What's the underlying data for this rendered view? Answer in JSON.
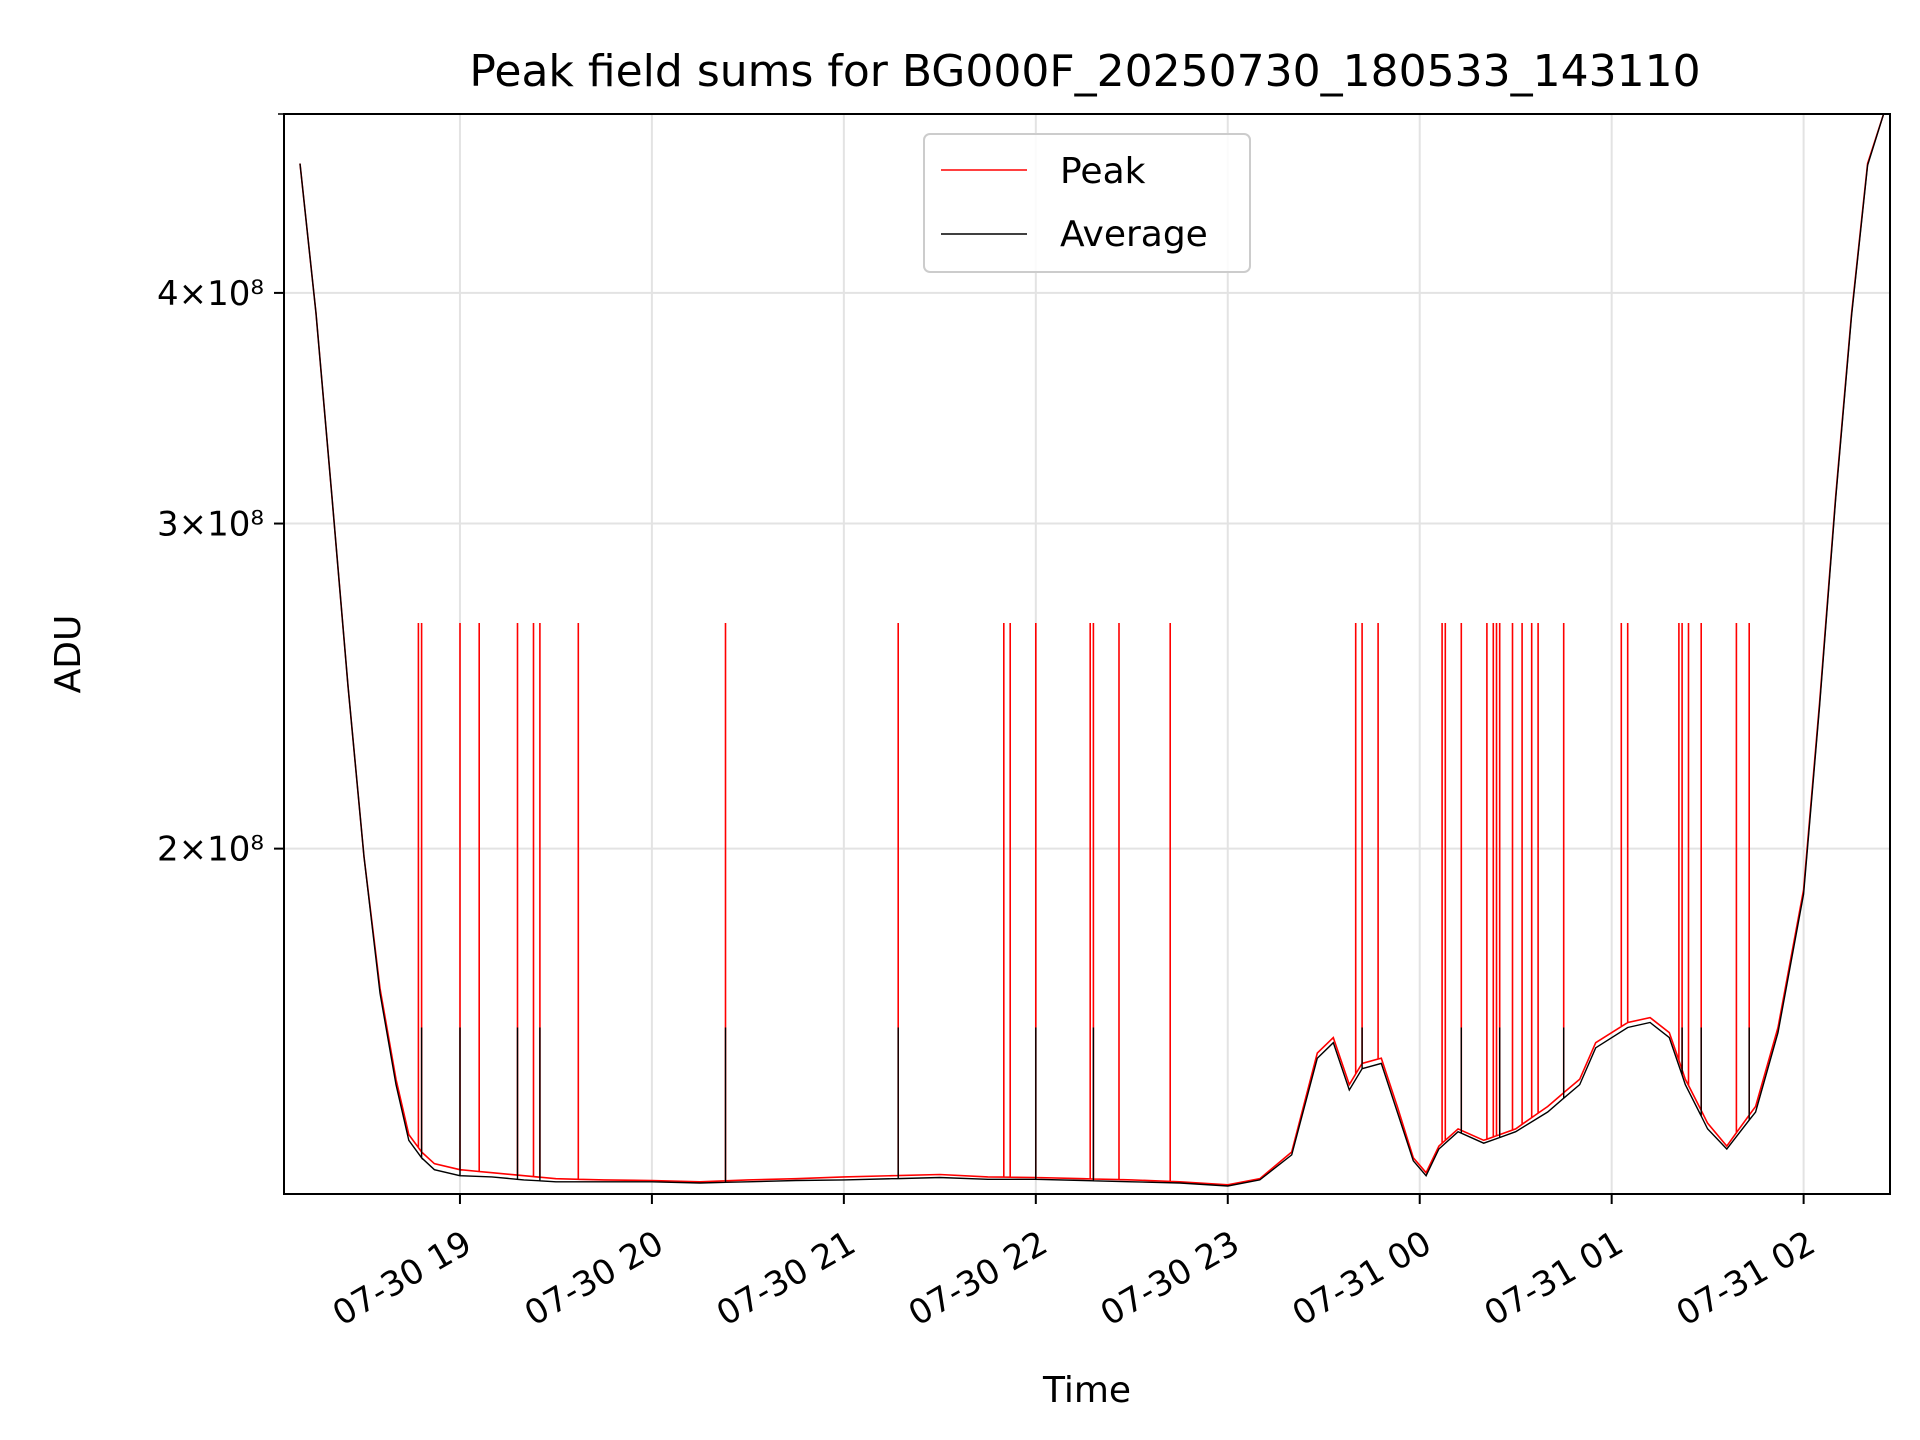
{
  "chart_data": {
    "type": "line",
    "title": "Peak field sums for BG000F_20250730_180533_143110",
    "xlabel": "Time",
    "ylabel": "ADU",
    "yscale": "log",
    "grid": true,
    "legend_position": "upper center",
    "xlim": [
      "2025-07-30 18:05",
      "2025-07-31 02:27"
    ],
    "ylim": [
      130000000,
      500000000
    ],
    "x_ticks": [
      "07-30 19",
      "07-30 20",
      "07-30 21",
      "07-30 22",
      "07-30 23",
      "07-31 00",
      "07-31 01",
      "07-31 02"
    ],
    "x_tick_times": [
      "2025-07-30 19:00",
      "2025-07-30 20:00",
      "2025-07-30 21:00",
      "2025-07-30 22:00",
      "2025-07-30 23:00",
      "2025-07-31 00:00",
      "2025-07-31 01:00",
      "2025-07-31 02:00"
    ],
    "y_ticks": [
      {
        "value": 200000000,
        "label": "2×10⁸"
      },
      {
        "value": 300000000,
        "label": "3×10⁸"
      },
      {
        "value": 400000000,
        "label": "4×10⁸"
      }
    ],
    "series": [
      {
        "name": "Peak",
        "color": "#ff0000",
        "x": [
          "2025-07-30 18:10",
          "2025-07-30 18:15",
          "2025-07-30 18:20",
          "2025-07-30 18:25",
          "2025-07-30 18:30",
          "2025-07-30 18:35",
          "2025-07-30 18:40",
          "2025-07-30 18:44",
          "2025-07-30 18:48",
          "2025-07-30 18:52",
          "2025-07-30 19:00",
          "2025-07-30 19:10",
          "2025-07-30 19:20",
          "2025-07-30 19:30",
          "2025-07-30 19:45",
          "2025-07-30 20:00",
          "2025-07-30 20:15",
          "2025-07-30 20:30",
          "2025-07-30 20:45",
          "2025-07-30 21:00",
          "2025-07-30 21:15",
          "2025-07-30 21:30",
          "2025-07-30 21:45",
          "2025-07-30 22:00",
          "2025-07-30 22:15",
          "2025-07-30 22:30",
          "2025-07-30 22:45",
          "2025-07-30 23:00",
          "2025-07-30 23:10",
          "2025-07-30 23:20",
          "2025-07-30 23:28",
          "2025-07-30 23:33",
          "2025-07-30 23:38",
          "2025-07-30 23:42",
          "2025-07-30 23:48",
          "2025-07-30 23:53",
          "2025-07-30 23:58",
          "2025-07-31 00:02",
          "2025-07-31 00:06",
          "2025-07-31 00:12",
          "2025-07-31 00:20",
          "2025-07-31 00:30",
          "2025-07-31 00:40",
          "2025-07-31 00:50",
          "2025-07-31 00:55",
          "2025-07-31 01:05",
          "2025-07-31 01:12",
          "2025-07-31 01:18",
          "2025-07-31 01:23",
          "2025-07-31 01:30",
          "2025-07-31 01:36",
          "2025-07-31 01:45",
          "2025-07-31 01:52",
          "2025-07-31 02:00",
          "2025-07-31 02:05",
          "2025-07-31 02:10",
          "2025-07-31 02:15",
          "2025-07-31 02:20",
          "2025-07-31 02:25"
        ],
        "y": [
          470000000,
          390000000,
          310000000,
          245000000,
          198000000,
          168000000,
          150000000,
          140000000,
          137000000,
          135000000,
          134000000,
          133500000,
          133000000,
          132500000,
          132300000,
          132200000,
          132000000,
          132300000,
          132500000,
          132800000,
          133000000,
          133200000,
          132800000,
          132700000,
          132500000,
          132300000,
          132000000,
          131500000,
          132500000,
          137000000,
          155000000,
          158000000,
          149000000,
          153000000,
          154000000,
          145000000,
          136000000,
          133500000,
          138000000,
          141000000,
          139000000,
          141000000,
          145000000,
          150000000,
          157000000,
          161000000,
          162000000,
          159000000,
          150000000,
          142000000,
          138000000,
          145000000,
          160000000,
          190000000,
          240000000,
          310000000,
          390000000,
          470000000,
          500000000
        ],
        "spikes": [
          "2025-07-30 18:47",
          "2025-07-30 18:48",
          "2025-07-30 19:00",
          "2025-07-30 19:06",
          "2025-07-30 19:18",
          "2025-07-30 19:23",
          "2025-07-30 19:25",
          "2025-07-30 19:37",
          "2025-07-30 20:23",
          "2025-07-30 21:17",
          "2025-07-30 21:50",
          "2025-07-30 21:52",
          "2025-07-30 22:00",
          "2025-07-30 22:17",
          "2025-07-30 22:18",
          "2025-07-30 22:26",
          "2025-07-30 22:42",
          "2025-07-30 23:40",
          "2025-07-30 23:42",
          "2025-07-30 23:47",
          "2025-07-31 00:07",
          "2025-07-31 00:08",
          "2025-07-31 00:13",
          "2025-07-31 00:21",
          "2025-07-31 00:23",
          "2025-07-31 00:24",
          "2025-07-31 00:25",
          "2025-07-31 00:29",
          "2025-07-31 00:32",
          "2025-07-31 00:35",
          "2025-07-31 00:37",
          "2025-07-31 00:45",
          "2025-07-31 01:03",
          "2025-07-31 01:05",
          "2025-07-31 01:21",
          "2025-07-31 01:22",
          "2025-07-31 01:24",
          "2025-07-31 01:28",
          "2025-07-31 01:39",
          "2025-07-31 01:43"
        ],
        "spike_peak": 265000000
      },
      {
        "name": "Average",
        "color": "#000000",
        "x": [
          "2025-07-30 18:10",
          "2025-07-30 18:15",
          "2025-07-30 18:20",
          "2025-07-30 18:25",
          "2025-07-30 18:30",
          "2025-07-30 18:35",
          "2025-07-30 18:40",
          "2025-07-30 18:44",
          "2025-07-30 18:48",
          "2025-07-30 18:52",
          "2025-07-30 19:00",
          "2025-07-30 19:10",
          "2025-07-30 19:20",
          "2025-07-30 19:30",
          "2025-07-30 19:45",
          "2025-07-30 20:00",
          "2025-07-30 20:15",
          "2025-07-30 20:30",
          "2025-07-30 20:45",
          "2025-07-30 21:00",
          "2025-07-30 21:15",
          "2025-07-30 21:30",
          "2025-07-30 21:45",
          "2025-07-30 22:00",
          "2025-07-30 22:15",
          "2025-07-30 22:30",
          "2025-07-30 22:45",
          "2025-07-30 23:00",
          "2025-07-30 23:10",
          "2025-07-30 23:20",
          "2025-07-30 23:28",
          "2025-07-30 23:33",
          "2025-07-30 23:38",
          "2025-07-30 23:42",
          "2025-07-30 23:48",
          "2025-07-30 23:53",
          "2025-07-30 23:58",
          "2025-07-31 00:02",
          "2025-07-31 00:06",
          "2025-07-31 00:12",
          "2025-07-31 00:20",
          "2025-07-31 00:30",
          "2025-07-31 00:40",
          "2025-07-31 00:50",
          "2025-07-31 00:55",
          "2025-07-31 01:05",
          "2025-07-31 01:12",
          "2025-07-31 01:18",
          "2025-07-31 01:23",
          "2025-07-31 01:30",
          "2025-07-31 01:36",
          "2025-07-31 01:45",
          "2025-07-31 01:52",
          "2025-07-31 02:00",
          "2025-07-31 02:05",
          "2025-07-31 02:10",
          "2025-07-31 02:15",
          "2025-07-31 02:20",
          "2025-07-31 02:25"
        ],
        "y": [
          470000000,
          390000000,
          310000000,
          245000000,
          198000000,
          167000000,
          149000000,
          139000000,
          136000000,
          134000000,
          133000000,
          132800000,
          132300000,
          132000000,
          132000000,
          132000000,
          131800000,
          132000000,
          132200000,
          132300000,
          132500000,
          132700000,
          132400000,
          132400000,
          132200000,
          132000000,
          131800000,
          131300000,
          132300000,
          136500000,
          154000000,
          157000000,
          148000000,
          152000000,
          153000000,
          144000000,
          135500000,
          133000000,
          137500000,
          140500000,
          138500000,
          140500000,
          144000000,
          149000000,
          156000000,
          160000000,
          161000000,
          158000000,
          149000000,
          141000000,
          137500000,
          144000000,
          159000000,
          189000000,
          239000000,
          309000000,
          389000000,
          469000000,
          500000000
        ],
        "spikes": [
          "2025-07-30 18:48",
          "2025-07-30 19:00",
          "2025-07-30 19:18",
          "2025-07-30 19:25",
          "2025-07-30 20:23",
          "2025-07-30 21:17",
          "2025-07-30 22:00",
          "2025-07-30 22:18",
          "2025-07-30 23:42",
          "2025-07-31 00:13",
          "2025-07-31 00:25",
          "2025-07-31 00:45",
          "2025-07-31 01:05",
          "2025-07-31 01:22",
          "2025-07-31 01:28",
          "2025-07-31 01:43"
        ],
        "spike_peak": 160000000
      }
    ]
  }
}
